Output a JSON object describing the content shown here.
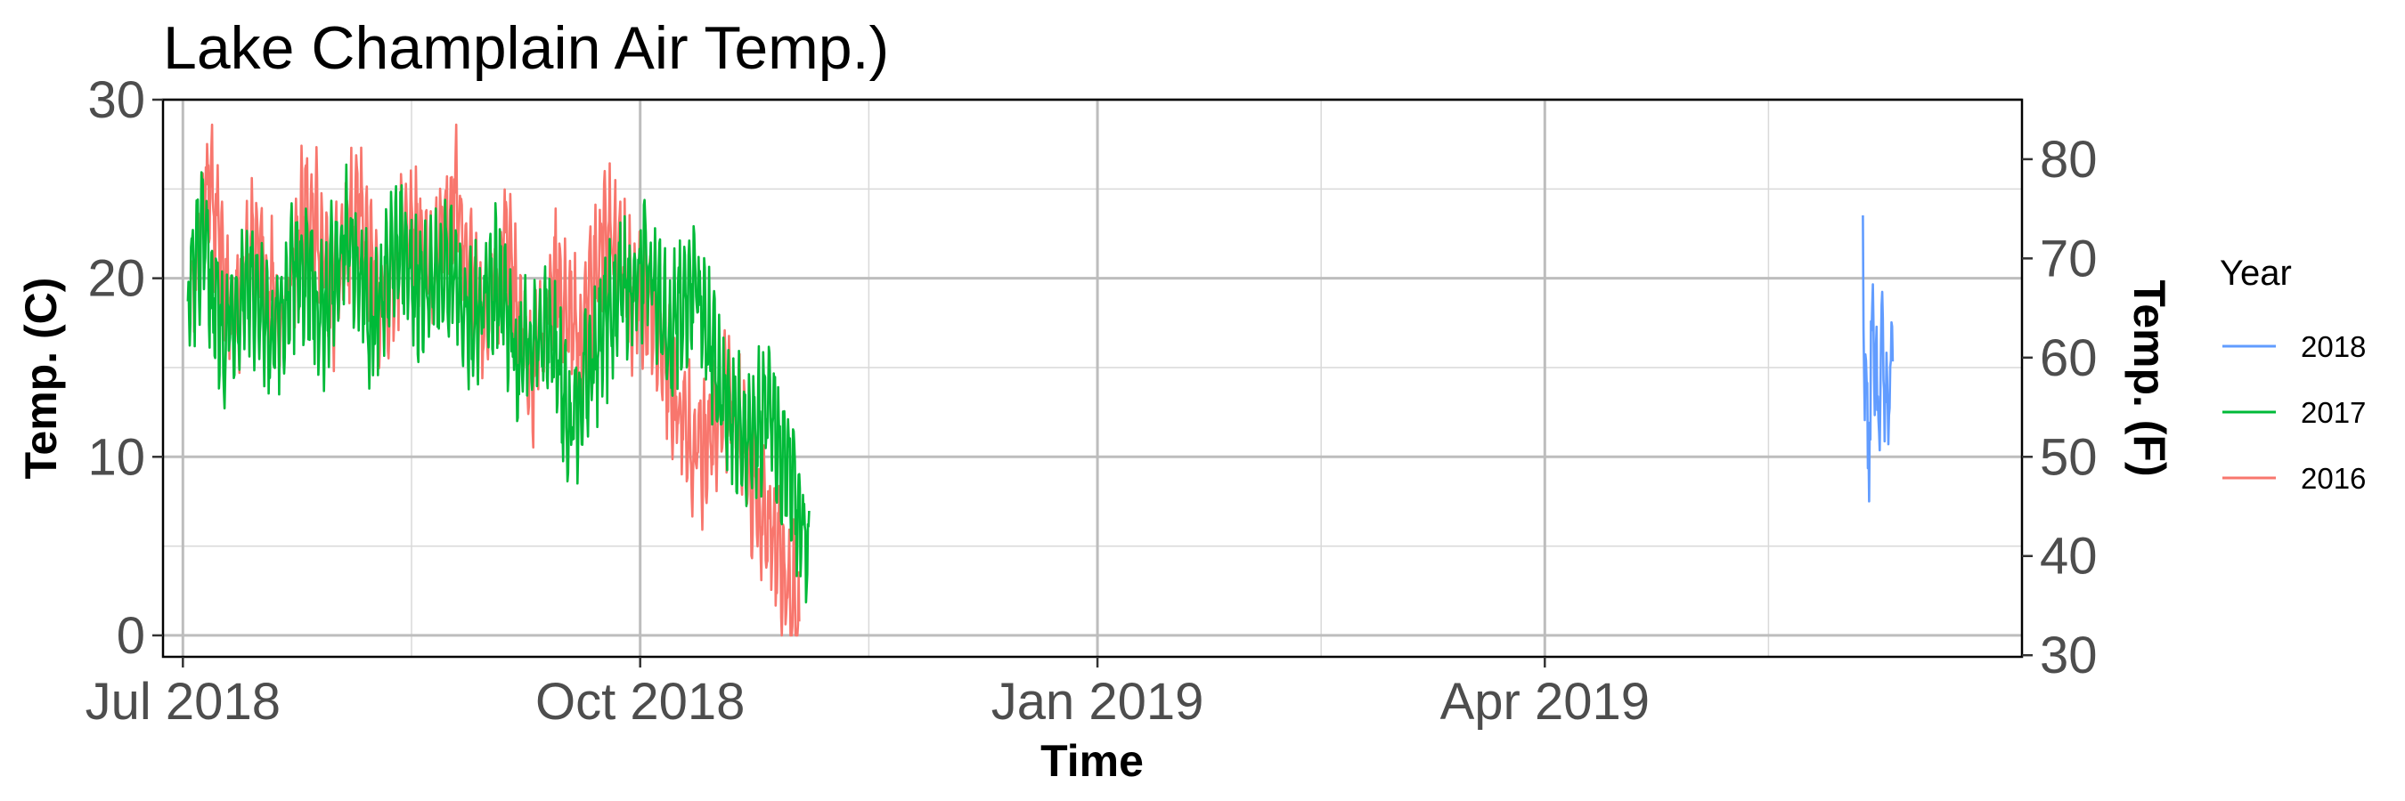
{
  "chart_data": {
    "type": "line",
    "title": "Lake Champlain Air Temp.)",
    "xlabel": "Time",
    "ylabel": "Temp. (C)",
    "y2label": "Temp. (F)",
    "xlim": [
      "2018-06-27",
      "2019-07-06"
    ],
    "ylim": [
      -1.2,
      30
    ],
    "y2lim": [
      29.84,
      86
    ],
    "x_ticks": [
      {
        "date": "2018-07-01",
        "label": "Jul 2018"
      },
      {
        "date": "2018-10-01",
        "label": "Oct 2018"
      },
      {
        "date": "2019-01-01",
        "label": "Jan 2019"
      },
      {
        "date": "2019-04-01",
        "label": "Apr 2019"
      }
    ],
    "x_minor_ticks": [
      "2018-08-16",
      "2018-11-16",
      "2019-02-15",
      "2019-05-16"
    ],
    "y_ticks": [
      0,
      10,
      20,
      30
    ],
    "y2_ticks": [
      30,
      40,
      50,
      60,
      70,
      80
    ],
    "grid": true,
    "legend": {
      "title": "Year",
      "position": "right"
    },
    "series": [
      {
        "name": "2018",
        "color": "#619CFF",
        "x": [
          "2019-06-04",
          "2019-06-05",
          "2019-06-06",
          "2019-06-07",
          "2019-06-08",
          "2019-06-09",
          "2019-06-10"
        ],
        "y": [
          21,
          9,
          19,
          11,
          16,
          12,
          16
        ]
      },
      {
        "name": "2017",
        "color": "#00BA38",
        "x": [
          "2018-07-02",
          "2018-07-05",
          "2018-07-09",
          "2018-07-14",
          "2018-07-19",
          "2018-07-24",
          "2018-07-29",
          "2018-08-03",
          "2018-08-08",
          "2018-08-13",
          "2018-08-18",
          "2018-08-23",
          "2018-08-28",
          "2018-09-02",
          "2018-09-07",
          "2018-09-12",
          "2018-09-17",
          "2018-09-22",
          "2018-09-27",
          "2018-10-02",
          "2018-10-07",
          "2018-10-12",
          "2018-10-17",
          "2018-10-22",
          "2018-10-27",
          "2018-11-01",
          "2018-11-04"
        ],
        "y": [
          19,
          22,
          17,
          20,
          16,
          21,
          18,
          23,
          17,
          22,
          19,
          21,
          17,
          20,
          15,
          18,
          12,
          16,
          19,
          21,
          17,
          20,
          14,
          11,
          13,
          8,
          5
        ]
      },
      {
        "name": "2016",
        "color": "#F8766D",
        "x": [
          "2018-07-03",
          "2018-07-06",
          "2018-07-11",
          "2018-07-16",
          "2018-07-21",
          "2018-07-26",
          "2018-07-31",
          "2018-08-05",
          "2018-08-10",
          "2018-08-15",
          "2018-08-20",
          "2018-08-25",
          "2018-08-30",
          "2018-09-04",
          "2018-09-09",
          "2018-09-14",
          "2018-09-19",
          "2018-09-24",
          "2018-09-29",
          "2018-10-04",
          "2018-10-09",
          "2018-10-14",
          "2018-10-19",
          "2018-10-24",
          "2018-10-29",
          "2018-11-01",
          "2018-11-02"
        ],
        "y": [
          20,
          26,
          18,
          22,
          17,
          25,
          19,
          24,
          18,
          23,
          20,
          25,
          17,
          22,
          14,
          20,
          16,
          23,
          19,
          18,
          12,
          10,
          14,
          8,
          4,
          2,
          0
        ]
      }
    ]
  }
}
